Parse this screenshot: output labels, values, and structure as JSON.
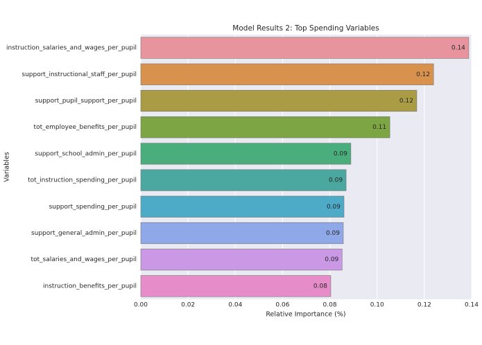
{
  "chart_data": {
    "type": "barh",
    "title": "Model Results 2: Top Spending Variables",
    "xlabel": "Relative Importance (%)",
    "ylabel": "Variables",
    "categories": [
      "instruction_salaries_and_wages_per_pupil",
      "support_instructional_staff_per_pupil",
      "support_pupil_support_per_pupil",
      "tot_employee_benefits_per_pupil",
      "support_school_admin_per_pupil",
      "tot_instruction_spending_per_pupil",
      "support_spending_per_pupil",
      "support_general_admin_per_pupil",
      "tot_salaries_and_wages_per_pupil",
      "instruction_benefits_per_pupil"
    ],
    "values": [
      0.1388,
      0.1239,
      0.1168,
      0.1054,
      0.0889,
      0.0869,
      0.086,
      0.0857,
      0.0852,
      0.0804
    ],
    "value_labels": [
      "0.14",
      "0.12",
      "0.12",
      "0.11",
      "0.09",
      "0.09",
      "0.09",
      "0.09",
      "0.09",
      "0.08"
    ],
    "colors": [
      "#e8949e",
      "#d8924d",
      "#a99c45",
      "#7ea543",
      "#4aae7c",
      "#4aa8a0",
      "#4dabc8",
      "#8fa8e8",
      "#cb98e6",
      "#e68dc9"
    ],
    "xlim": [
      0,
      0.14
    ],
    "xticks": [
      {
        "value": 0,
        "label": "0.00"
      },
      {
        "value": 0.02,
        "label": "0.02"
      },
      {
        "value": 0.04,
        "label": "0.04"
      },
      {
        "value": 0.06,
        "label": "0.06"
      },
      {
        "value": 0.08,
        "label": "0.08"
      },
      {
        "value": 0.1,
        "label": "0.10"
      },
      {
        "value": 0.12,
        "label": "0.12"
      },
      {
        "value": 0.14,
        "label": "0.14"
      }
    ],
    "grid": true
  }
}
